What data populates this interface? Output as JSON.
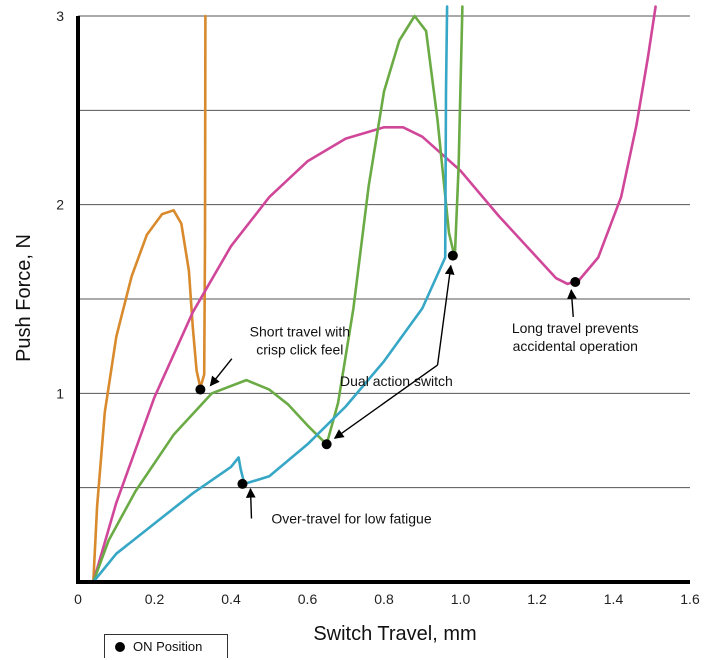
{
  "chart_data": {
    "type": "line",
    "xlabel": "Switch Travel, mm",
    "ylabel": "Push Force, N",
    "xlim": [
      0,
      1.6
    ],
    "ylim": [
      0,
      3
    ],
    "x_ticks": [
      "0",
      "0.2",
      "0.4",
      "0.6",
      "0.8",
      "1.0",
      "1.2",
      "1.4",
      "1.6"
    ],
    "y_ticks": [
      "1",
      "2",
      "3"
    ],
    "gridlines_y": [
      0.5,
      1,
      1.5,
      2,
      2.5,
      3
    ],
    "series": [
      {
        "color": "#d88a2c",
        "points": [
          [
            0.04,
            0
          ],
          [
            0.05,
            0.4
          ],
          [
            0.07,
            0.9
          ],
          [
            0.1,
            1.3
          ],
          [
            0.14,
            1.62
          ],
          [
            0.18,
            1.84
          ],
          [
            0.22,
            1.95
          ],
          [
            0.25,
            1.97
          ],
          [
            0.27,
            1.9
          ],
          [
            0.29,
            1.65
          ],
          [
            0.3,
            1.35
          ],
          [
            0.31,
            1.12
          ],
          [
            0.32,
            1.03
          ],
          [
            0.33,
            1.1
          ],
          [
            0.332,
            1.8
          ],
          [
            0.333,
            3.0
          ]
        ]
      },
      {
        "color": "#d0479a",
        "points": [
          [
            0.04,
            0
          ],
          [
            0.1,
            0.42
          ],
          [
            0.2,
            0.98
          ],
          [
            0.3,
            1.43
          ],
          [
            0.4,
            1.78
          ],
          [
            0.5,
            2.04
          ],
          [
            0.6,
            2.23
          ],
          [
            0.7,
            2.35
          ],
          [
            0.8,
            2.41
          ],
          [
            0.85,
            2.41
          ],
          [
            0.9,
            2.36
          ],
          [
            1.0,
            2.18
          ],
          [
            1.1,
            1.94
          ],
          [
            1.2,
            1.72
          ],
          [
            1.25,
            1.61
          ],
          [
            1.28,
            1.58
          ],
          [
            1.31,
            1.6
          ],
          [
            1.36,
            1.72
          ],
          [
            1.42,
            2.04
          ],
          [
            1.46,
            2.42
          ],
          [
            1.49,
            2.78
          ],
          [
            1.51,
            3.05
          ]
        ]
      },
      {
        "color": "#6aab45",
        "points": [
          [
            0.04,
            0
          ],
          [
            0.08,
            0.22
          ],
          [
            0.15,
            0.48
          ],
          [
            0.25,
            0.78
          ],
          [
            0.35,
            1.0
          ],
          [
            0.44,
            1.07
          ],
          [
            0.5,
            1.02
          ],
          [
            0.55,
            0.94
          ],
          [
            0.6,
            0.83
          ],
          [
            0.65,
            0.73
          ],
          [
            0.68,
            0.95
          ],
          [
            0.72,
            1.45
          ],
          [
            0.76,
            2.1
          ],
          [
            0.8,
            2.6
          ],
          [
            0.84,
            2.87
          ],
          [
            0.88,
            3.0
          ],
          [
            0.91,
            2.92
          ],
          [
            0.94,
            2.45
          ],
          [
            0.97,
            1.85
          ],
          [
            0.985,
            1.72
          ],
          [
            0.995,
            2.2
          ],
          [
            1.005,
            3.05
          ]
        ]
      },
      {
        "color": "#36a7c6",
        "points": [
          [
            0.04,
            0
          ],
          [
            0.1,
            0.15
          ],
          [
            0.2,
            0.31
          ],
          [
            0.3,
            0.47
          ],
          [
            0.4,
            0.61
          ],
          [
            0.42,
            0.66
          ],
          [
            0.425,
            0.6
          ],
          [
            0.435,
            0.52
          ],
          [
            0.5,
            0.56
          ],
          [
            0.6,
            0.73
          ],
          [
            0.7,
            0.93
          ],
          [
            0.8,
            1.17
          ],
          [
            0.9,
            1.45
          ],
          [
            0.96,
            1.72
          ],
          [
            0.962,
            2.6
          ],
          [
            0.965,
            3.05
          ]
        ]
      }
    ],
    "on_positions": [
      {
        "x": 0.32,
        "y": 1.02
      },
      {
        "x": 0.43,
        "y": 0.52
      },
      {
        "x": 0.65,
        "y": 0.73
      },
      {
        "x": 0.98,
        "y": 1.73
      },
      {
        "x": 1.3,
        "y": 1.59
      }
    ],
    "annotations": [
      {
        "lines": [
          "Short travel with",
          "crisp click feel"
        ],
        "target": [
          0.32,
          1.02
        ],
        "text_at": [
          0.58,
          1.3
        ],
        "anchor": "middle"
      },
      {
        "lines": [
          "Over-travel for low fatigue"
        ],
        "target": [
          0.43,
          0.52
        ],
        "text_at": [
          0.715,
          0.31
        ],
        "anchor": "middle"
      },
      {
        "lines": [
          "Dual action switch"
        ],
        "target_a": [
          0.65,
          0.73
        ],
        "target_b": [
          0.98,
          1.73
        ],
        "joint": [
          0.94,
          1.15
        ],
        "text_at": [
          0.98,
          1.04
        ],
        "anchor": "end"
      },
      {
        "lines": [
          "Long travel prevents",
          "accidental operation"
        ],
        "target": [
          1.3,
          1.59
        ],
        "text_at": [
          1.3,
          1.32
        ],
        "anchor": "middle"
      }
    ],
    "legend": {
      "label": "ON Position",
      "placement": "bottom-left"
    }
  }
}
